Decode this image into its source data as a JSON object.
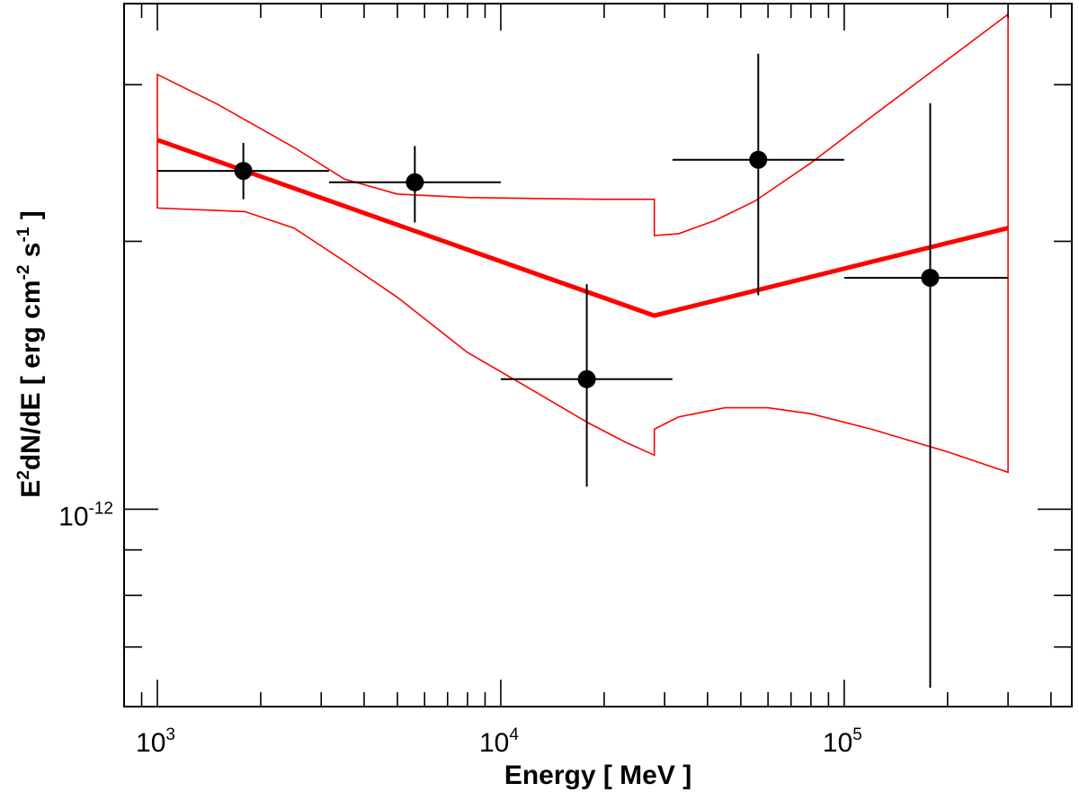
{
  "chart_data": {
    "type": "scatter",
    "title": "",
    "xlabel": {
      "text": "Energy [ MeV ]"
    },
    "ylabel": {
      "p1": "E",
      "s1": "2",
      "p2": "dN/dE [ erg cm",
      "s2": "-2",
      "p3": " s",
      "s3": "-1",
      "p4": " ]"
    },
    "x_scale": "log",
    "y_scale": "log",
    "xlim": [
      800,
      460000
    ],
    "ylim": [
      6e-13,
      3.7e-12
    ],
    "x_ticks": [
      {
        "value": 1000,
        "base": "10",
        "exp": "3"
      },
      {
        "value": 10000,
        "base": "10",
        "exp": "4"
      },
      {
        "value": 100000,
        "base": "10",
        "exp": "5"
      }
    ],
    "y_ticks": [
      {
        "value": 1e-12,
        "base": "10",
        "exp": "-12"
      }
    ],
    "y_minor_ticks": [
      7e-13,
      8e-13,
      9e-13,
      2e-12,
      3e-12
    ],
    "series": [
      {
        "name": "data points",
        "color": "#000000",
        "points": [
          {
            "x": 1780,
            "y": 2.4e-12,
            "xlo": 1000,
            "xhi": 3160,
            "ylo": 2.23e-12,
            "yhi": 2.58e-12
          },
          {
            "x": 5620,
            "y": 2.33e-12,
            "xlo": 3160,
            "xhi": 10000,
            "ylo": 2.1e-12,
            "yhi": 2.56e-12
          },
          {
            "x": 17800,
            "y": 1.4e-12,
            "xlo": 10000,
            "xhi": 31600,
            "ylo": 1.06e-12,
            "yhi": 1.79e-12
          },
          {
            "x": 56200,
            "y": 2.47e-12,
            "xlo": 31600,
            "xhi": 100000,
            "ylo": 1.74e-12,
            "yhi": 3.25e-12
          },
          {
            "x": 178000,
            "y": 1.82e-12,
            "xlo": 100000,
            "xhi": 300000,
            "ylo": 6.3e-13,
            "yhi": 2.86e-12
          }
        ]
      },
      {
        "name": "broken power-law fit",
        "color": "#ff0000",
        "x": [
          1000,
          28000,
          300000
        ],
        "y": [
          2.6e-12,
          1.65e-12,
          2.07e-12
        ]
      },
      {
        "name": "fit uncertainty band",
        "color": "#ff0000",
        "upper": {
          "x": [
            1000,
            1500,
            2500,
            3500,
            5000,
            8000,
            12000,
            20000,
            28000,
            28000,
            33000,
            42000,
            55000,
            80000,
            120000,
            200000,
            300000
          ],
          "y": [
            3.08e-12,
            2.85e-12,
            2.55e-12,
            2.35e-12,
            2.26e-12,
            2.24e-12,
            2.235e-12,
            2.23e-12,
            2.23e-12,
            2.03e-12,
            2.04e-12,
            2.11e-12,
            2.22e-12,
            2.45e-12,
            2.76e-12,
            3.2e-12,
            3.6e-12
          ]
        },
        "lower": {
          "x": [
            1000,
            1800,
            2500,
            3500,
            5000,
            8000,
            12000,
            18000,
            23000,
            28000,
            28000,
            33000,
            45000,
            60000,
            80000,
            120000,
            200000,
            300000
          ],
          "y": [
            2.18e-12,
            2.16e-12,
            2.07e-12,
            1.9e-12,
            1.73e-12,
            1.5e-12,
            1.37e-12,
            1.25e-12,
            1.19e-12,
            1.15e-12,
            1.23e-12,
            1.27e-12,
            1.3e-12,
            1.3e-12,
            1.28e-12,
            1.23e-12,
            1.16e-12,
            1.1e-12
          ]
        }
      }
    ]
  }
}
